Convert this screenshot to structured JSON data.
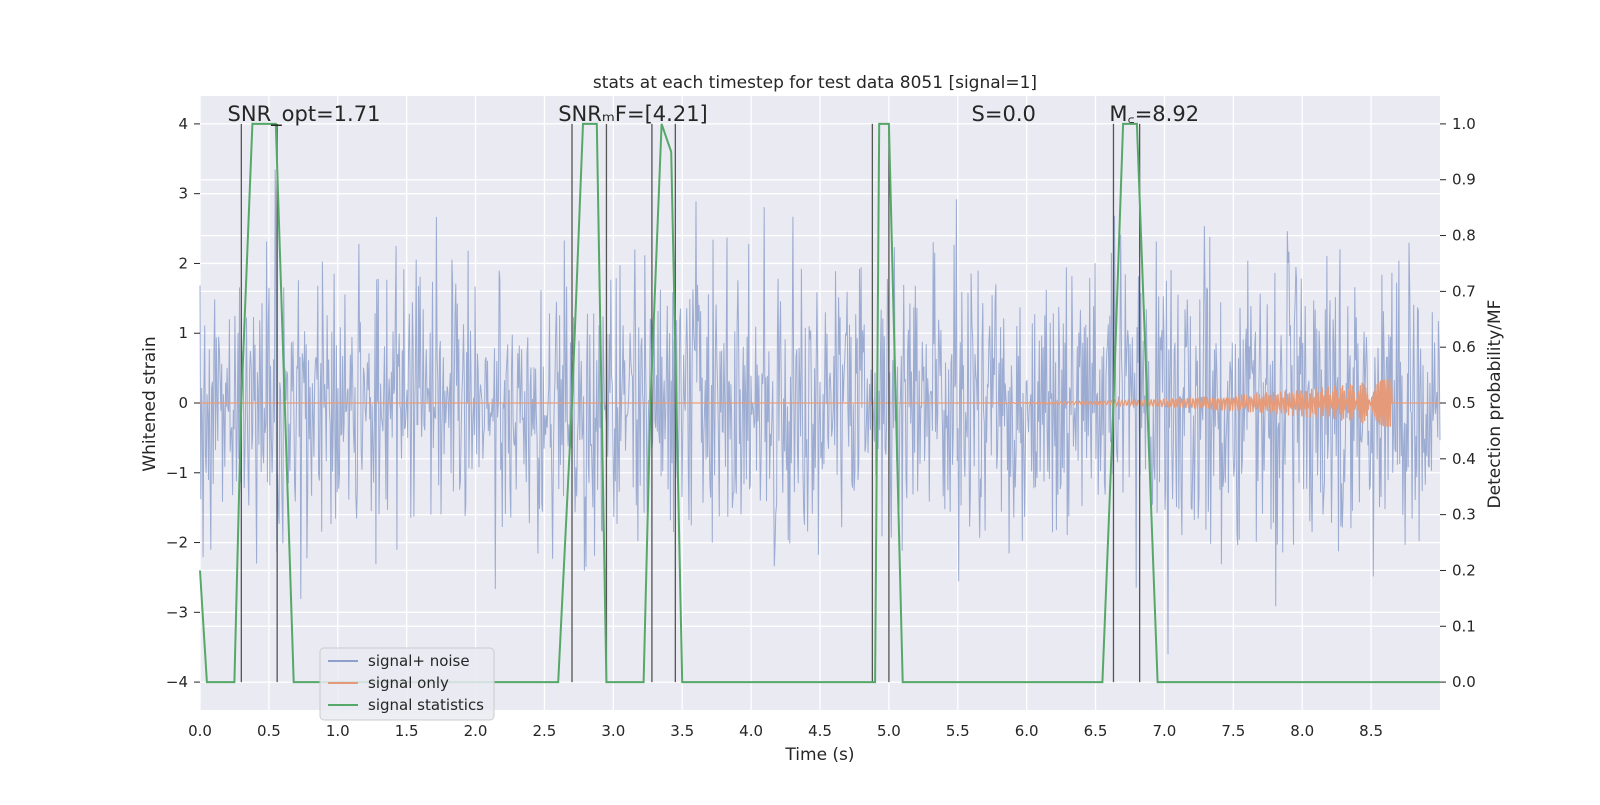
{
  "chart_data": {
    "type": "line",
    "title": "stats at each timestep for test data 8051 [signal=1]",
    "xlabel": "Time (s)",
    "ylabel": "Whitened strain",
    "ylabel_right": "Detection probability/MF",
    "xlim": [
      0.0,
      9.0
    ],
    "ylim": [
      -4.4,
      4.4
    ],
    "ylim_right": [
      -0.05,
      1.05
    ],
    "x_ticks": [
      "0.0",
      "0.5",
      "1.0",
      "1.5",
      "2.0",
      "2.5",
      "3.0",
      "3.5",
      "4.0",
      "4.5",
      "5.0",
      "5.5",
      "6.0",
      "6.5",
      "7.0",
      "7.5",
      "8.0",
      "8.5"
    ],
    "y_ticks": [
      "4",
      "3",
      "2",
      "1",
      "0",
      "−1",
      "−2",
      "−3",
      "−4"
    ],
    "y_right_ticks": [
      "1.0",
      "0.9",
      "0.8",
      "0.7",
      "0.6",
      "0.5",
      "0.4",
      "0.3",
      "0.2",
      "0.1",
      "0.0"
    ],
    "grid": true,
    "legend_location": "lower-left",
    "series": [
      {
        "name": "signal+ noise",
        "color": "#8da0cb",
        "noise_band_center": 0.0,
        "noise_band_sigma": 1.0,
        "noise_band_max_abs": 3.6
      },
      {
        "name": "signal only",
        "color": "#e59b7a",
        "chirp_start": 4.9,
        "chirp_end": 8.65,
        "chirp_peak_amplitude": 0.35
      },
      {
        "name": "signal statistics",
        "color": "#55a868",
        "axis": "right",
        "x": [
          0.0,
          0.05,
          0.25,
          0.3,
          0.38,
          0.55,
          0.68,
          2.6,
          2.7,
          2.78,
          2.88,
          2.95,
          3.22,
          3.27,
          3.35,
          3.42,
          3.5,
          3.7,
          3.9,
          4.9,
          4.93,
          5.0,
          5.1,
          6.55,
          6.63,
          6.7,
          6.8,
          6.95,
          7.0,
          7.5,
          8.0,
          9.0
        ],
        "values": [
          0.2,
          0.0,
          0.0,
          0.5,
          1.0,
          1.0,
          0.0,
          0.0,
          0.5,
          1.0,
          1.0,
          0.0,
          0.0,
          0.5,
          1.0,
          0.95,
          0.0,
          0.0,
          0.0,
          0.0,
          1.0,
          1.0,
          0.0,
          0.0,
          0.5,
          1.0,
          1.0,
          0.0,
          0.0,
          0.0,
          0.0,
          0.0
        ]
      }
    ],
    "vertical_lines": [
      0.3,
      0.56,
      2.7,
      2.95,
      3.28,
      3.45,
      4.88,
      5.0,
      6.63,
      6.82
    ],
    "annotations": [
      {
        "text": "SNR_opt=1.71",
        "at_x": 0.2
      },
      {
        "text": "SNRₘF=[4.21]",
        "at_x": 2.6
      },
      {
        "text": "S=0.0",
        "at_x": 5.6
      },
      {
        "text": "M꜀=8.92",
        "at_x": 6.6
      }
    ]
  }
}
